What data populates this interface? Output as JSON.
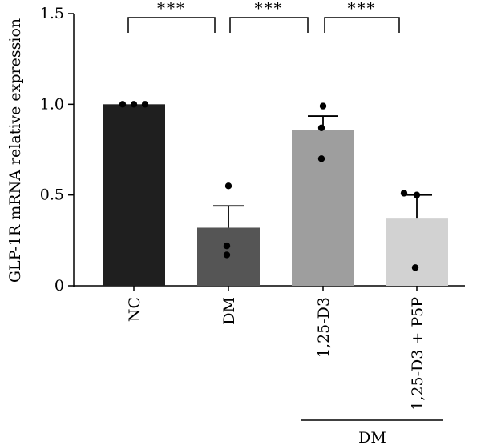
{
  "chart_data": {
    "type": "bar",
    "title": "",
    "xlabel": "",
    "ylabel": "GLP-1R mRNA relative expression",
    "ylim": [
      0,
      1.5
    ],
    "yticks": [
      "0",
      "0.5",
      "1.0",
      "1.5"
    ],
    "categories": [
      "NC",
      "DM",
      "1,25-D3",
      "1,25-D3 + P5P"
    ],
    "values": [
      1.0,
      0.32,
      0.86,
      0.37
    ],
    "errors": [
      0.0,
      0.12,
      0.075,
      0.13
    ],
    "points": [
      [
        1.0,
        1.0,
        1.0
      ],
      [
        0.55,
        0.22,
        0.17
      ],
      [
        0.99,
        0.87,
        0.7
      ],
      [
        0.51,
        0.5,
        0.1
      ]
    ],
    "bar_colors": [
      "#1f1f1f",
      "#555555",
      "#9e9e9e",
      "#d2d2d2"
    ],
    "significance": [
      {
        "from": 0,
        "to": 1,
        "label": "***"
      },
      {
        "from": 1,
        "to": 2,
        "label": "***"
      },
      {
        "from": 2,
        "to": 3,
        "label": "***"
      }
    ],
    "group_label": {
      "label": "DM",
      "from": 2,
      "to": 3
    },
    "grid": false,
    "legend": "none"
  }
}
